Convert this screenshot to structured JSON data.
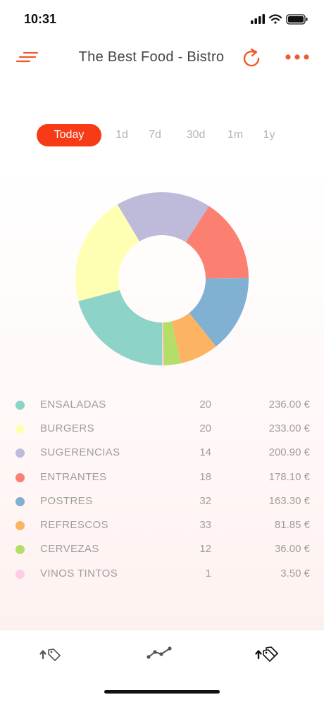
{
  "status": {
    "time": "10:31"
  },
  "header": {
    "title": "The Best Food - Bistro",
    "accent_color": "#f05a28",
    "icons": {
      "menu": "sort-lines-icon",
      "refresh": "refresh-icon",
      "more": "more-dots-icon"
    }
  },
  "range_tabs": [
    {
      "label": "Today",
      "active": true
    },
    {
      "label": "1d",
      "active": false
    },
    {
      "label": "7d",
      "active": false
    },
    {
      "label": "30d",
      "active": false
    },
    {
      "label": "1m",
      "active": false
    },
    {
      "label": "1y",
      "active": false
    }
  ],
  "active_tab_color": "#f73b16",
  "chart_data": {
    "type": "pie",
    "categories": [
      "ENSALADAS",
      "BURGERS",
      "SUGERENCIAS",
      "ENTRANTES",
      "POSTRES",
      "REFRESCOS",
      "CERVEZAS",
      "VINOS TINTOS"
    ],
    "values": [
      236.0,
      233.0,
      200.9,
      178.1,
      163.3,
      81.85,
      36.0,
      3.5
    ],
    "colors": [
      "#8dd3c7",
      "#ffffb3",
      "#bebada",
      "#fb8072",
      "#80b1d3",
      "#fdb462",
      "#b3de69",
      "#fccde5"
    ]
  },
  "legend": [
    {
      "name": "ENSALADAS",
      "count": "20",
      "amount": "236.00 €",
      "color": "#8dd3c7"
    },
    {
      "name": "BURGERS",
      "count": "20",
      "amount": "233.00 €",
      "color": "#ffffb3"
    },
    {
      "name": "SUGERENCIAS",
      "count": "14",
      "amount": "200.90 €",
      "color": "#bebada"
    },
    {
      "name": "ENTRANTES",
      "count": "18",
      "amount": "178.10 €",
      "color": "#fb8072"
    },
    {
      "name": "POSTRES",
      "count": "32",
      "amount": "163.30 €",
      "color": "#80b1d3"
    },
    {
      "name": "REFRESCOS",
      "count": "33",
      "amount": "81.85 €",
      "color": "#fdb462"
    },
    {
      "name": "CERVEZAS",
      "count": "12",
      "amount": "36.00 €",
      "color": "#b3de69"
    },
    {
      "name": "VINOS TINTOS",
      "count": "1",
      "amount": "3.50 €",
      "color": "#fccde5"
    }
  ],
  "tabbar": [
    {
      "icon": "price-tag-up-icon",
      "active": false
    },
    {
      "icon": "trend-line-icon",
      "active": false
    },
    {
      "icon": "price-tags-up-icon",
      "active": true
    }
  ]
}
